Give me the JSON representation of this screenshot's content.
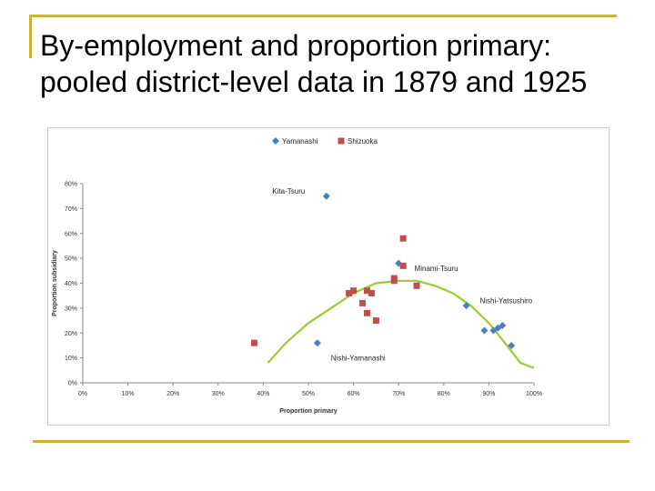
{
  "slide": {
    "title": "By-employment and proportion primary: pooled district-level data in 1879 and 1925"
  },
  "colors": {
    "accent": "#c8b53a",
    "yamanashi": "#4f7fbd",
    "shizuoka": "#c0504d",
    "trend": "#9acd32"
  },
  "chart_data": {
    "type": "scatter",
    "xlabel": "Proportion primary",
    "ylabel": "Proportion subsidiary",
    "xlim": [
      0,
      1
    ],
    "ylim": [
      0,
      0.8
    ],
    "xticks": [
      "0%",
      "10%",
      "20%",
      "30%",
      "40%",
      "50%",
      "60%",
      "70%",
      "80%",
      "90%",
      "100%"
    ],
    "yticks": [
      "0%",
      "10%",
      "20%",
      "30%",
      "40%",
      "50%",
      "60%",
      "70%",
      "80%"
    ],
    "legend_position": "top",
    "grid": false,
    "series": [
      {
        "name": "Yamanashi",
        "marker": "diamond",
        "color": "#4f7fbd",
        "points": [
          [
            0.54,
            0.75
          ],
          [
            0.52,
            0.16
          ],
          [
            0.7,
            0.48
          ],
          [
            0.85,
            0.31
          ],
          [
            0.89,
            0.21
          ],
          [
            0.91,
            0.21
          ],
          [
            0.92,
            0.22
          ],
          [
            0.93,
            0.23
          ],
          [
            0.95,
            0.15
          ]
        ]
      },
      {
        "name": "Shizuoka",
        "marker": "square",
        "color": "#c0504d",
        "points": [
          [
            0.38,
            0.16
          ],
          [
            0.59,
            0.36
          ],
          [
            0.6,
            0.37
          ],
          [
            0.62,
            0.32
          ],
          [
            0.63,
            0.37
          ],
          [
            0.63,
            0.28
          ],
          [
            0.64,
            0.36
          ],
          [
            0.65,
            0.25
          ],
          [
            0.69,
            0.42
          ],
          [
            0.69,
            0.41
          ],
          [
            0.71,
            0.58
          ],
          [
            0.71,
            0.47
          ],
          [
            0.74,
            0.39
          ]
        ]
      }
    ],
    "trendline": {
      "type": "quadratic",
      "x": [
        0.41,
        0.45,
        0.5,
        0.55,
        0.6,
        0.65,
        0.7,
        0.74,
        0.78,
        0.82,
        0.86,
        0.9,
        0.94,
        0.97,
        1.0
      ],
      "y": [
        0.08,
        0.16,
        0.24,
        0.3,
        0.36,
        0.4,
        0.41,
        0.41,
        0.39,
        0.36,
        0.31,
        0.24,
        0.15,
        0.08,
        0.06
      ]
    },
    "annotations": [
      {
        "text": "Kita-Tsuru",
        "x": 0.42,
        "y": 0.77,
        "anchor": "start"
      },
      {
        "text": "Minami-Tsuru",
        "x": 0.735,
        "y": 0.46,
        "anchor": "start"
      },
      {
        "text": "Nishi-Yatsushiro",
        "x": 0.88,
        "y": 0.33,
        "anchor": "start"
      },
      {
        "text": "Nishi-Yamanashi",
        "x": 0.55,
        "y": 0.1,
        "anchor": "start"
      }
    ]
  }
}
